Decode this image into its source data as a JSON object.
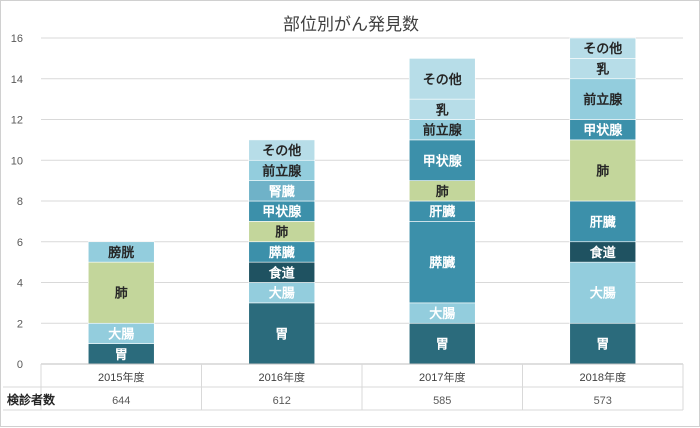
{
  "chart_data": {
    "type": "bar",
    "stacked": true,
    "title": "部位別がん発見数",
    "categories": [
      "2015年度",
      "2016年度",
      "2017年度",
      "2018年度"
    ],
    "ylim": [
      0,
      16
    ],
    "yticks": [
      0,
      2,
      4,
      6,
      8,
      10,
      12,
      14,
      16
    ],
    "grid": true,
    "stacks": [
      [
        {
          "label": "胃",
          "value": 1
        },
        {
          "label": "大腸",
          "value": 1
        },
        {
          "label": "肺",
          "value": 3
        },
        {
          "label": "膀胱",
          "value": 1
        }
      ],
      [
        {
          "label": "胃",
          "value": 3
        },
        {
          "label": "大腸",
          "value": 1
        },
        {
          "label": "食道",
          "value": 1
        },
        {
          "label": "膵臓",
          "value": 1
        },
        {
          "label": "肺",
          "value": 1
        },
        {
          "label": "甲状腺",
          "value": 1
        },
        {
          "label": "腎臓",
          "value": 1
        },
        {
          "label": "前立腺",
          "value": 1
        },
        {
          "label": "その他",
          "value": 1
        }
      ],
      [
        {
          "label": "胃",
          "value": 2
        },
        {
          "label": "大腸",
          "value": 1
        },
        {
          "label": "膵臓",
          "value": 4
        },
        {
          "label": "肝臓",
          "value": 1
        },
        {
          "label": "肺",
          "value": 1
        },
        {
          "label": "甲状腺",
          "value": 2
        },
        {
          "label": "前立腺",
          "value": 1
        },
        {
          "label": "乳",
          "value": 1
        },
        {
          "label": "その他",
          "value": 2
        }
      ],
      [
        {
          "label": "胃",
          "value": 2
        },
        {
          "label": "大腸",
          "value": 3
        },
        {
          "label": "食道",
          "value": 1
        },
        {
          "label": "肝臓",
          "value": 2
        },
        {
          "label": "肺",
          "value": 3
        },
        {
          "label": "甲状腺",
          "value": 1
        },
        {
          "label": "前立腺",
          "value": 2
        },
        {
          "label": "乳",
          "value": 1
        },
        {
          "label": "その他",
          "value": 1
        }
      ]
    ],
    "table_row": {
      "label": "検診者数",
      "values": [
        "644",
        "612",
        "585",
        "573"
      ]
    },
    "colors": {
      "胃": "#2b6b7c",
      "大腸": "#93cddd",
      "食道": "#1f5261",
      "膵臓": "#3c90aa",
      "肝臓": "#3c90aa",
      "肺": "#c3d69b",
      "膀胱": "#93cddd",
      "甲状腺": "#3c90aa",
      "腎臓": "#6fb2c8",
      "前立腺": "#93cddd",
      "乳": "#b7dde8",
      "その他": "#b7dde8"
    },
    "darkText": [
      "肺",
      "膀胱",
      "前立腺",
      "乳",
      "その他"
    ]
  }
}
